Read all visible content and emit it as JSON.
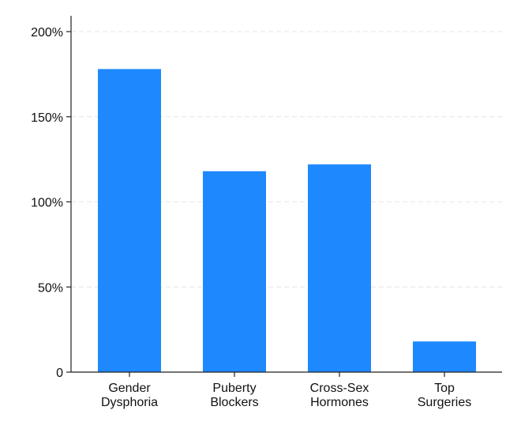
{
  "chart_data": {
    "type": "bar",
    "categories": [
      [
        "Gender",
        "Dysphoria"
      ],
      [
        "Puberty",
        "Blockers"
      ],
      [
        "Cross-Sex",
        "Hormones"
      ],
      [
        "Top",
        "Surgeries"
      ]
    ],
    "values": [
      178,
      118,
      122,
      18
    ],
    "value_unit": "%",
    "ylim": [
      0,
      200
    ],
    "yticks": [
      0,
      50,
      100,
      150,
      200
    ],
    "ytick_labels": [
      "0",
      "50%",
      "100%",
      "150%",
      "200%"
    ],
    "title": "",
    "xlabel": "",
    "ylabel": "",
    "grid": "horizontal dashed",
    "bar_color": "#1e88ff",
    "grid_color": "#e6e6e6",
    "axis_color": "#222222"
  }
}
